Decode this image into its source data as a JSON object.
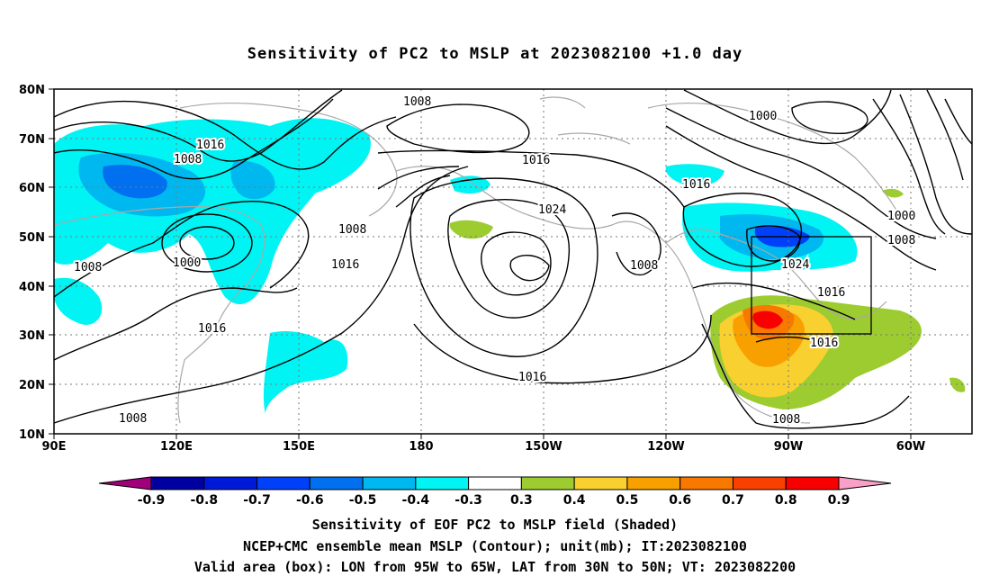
{
  "title": "Sensitivity of PC2 to MSLP at 2023082100 +1.0 day",
  "lat_labels": [
    "80N",
    "70N",
    "60N",
    "50N",
    "40N",
    "30N",
    "20N",
    "10N"
  ],
  "lon_labels": [
    "90E",
    "120E",
    "150E",
    "180",
    "150W",
    "120W",
    "90W",
    "60W"
  ],
  "contour_labels": [
    "1008",
    "1016",
    "1008",
    "1016",
    "1024",
    "1016",
    "1000",
    "1000",
    "1008",
    "1008",
    "1000",
    "1016",
    "1008",
    "1008",
    "1016",
    "1024",
    "1016",
    "1016",
    "1016",
    "1008",
    "1008"
  ],
  "colorbar": {
    "labels": [
      "-0.9",
      "-0.8",
      "-0.7",
      "-0.6",
      "-0.5",
      "-0.4",
      "-0.3",
      "0.3",
      "0.4",
      "0.5",
      "0.6",
      "0.7",
      "0.8",
      "0.9"
    ],
    "colors": [
      "#a0007a",
      "#0000a0",
      "#0018d8",
      "#0040f8",
      "#0070f0",
      "#00b8f0",
      "#00f4f4",
      "#ffffff",
      "#9ccc30",
      "#f8d030",
      "#f8a000",
      "#f87800",
      "#f84000",
      "#f80000",
      "#f8a0c8"
    ]
  },
  "captions": [
    "Sensitivity of EOF PC2 to MSLP field (Shaded)",
    "NCEP+CMC ensemble mean MSLP (Contour); unit(mb); IT:2023082100",
    "Valid area (box): LON from 95W to 65W, LAT from 30N to 50N; VT: 2023082200"
  ]
}
